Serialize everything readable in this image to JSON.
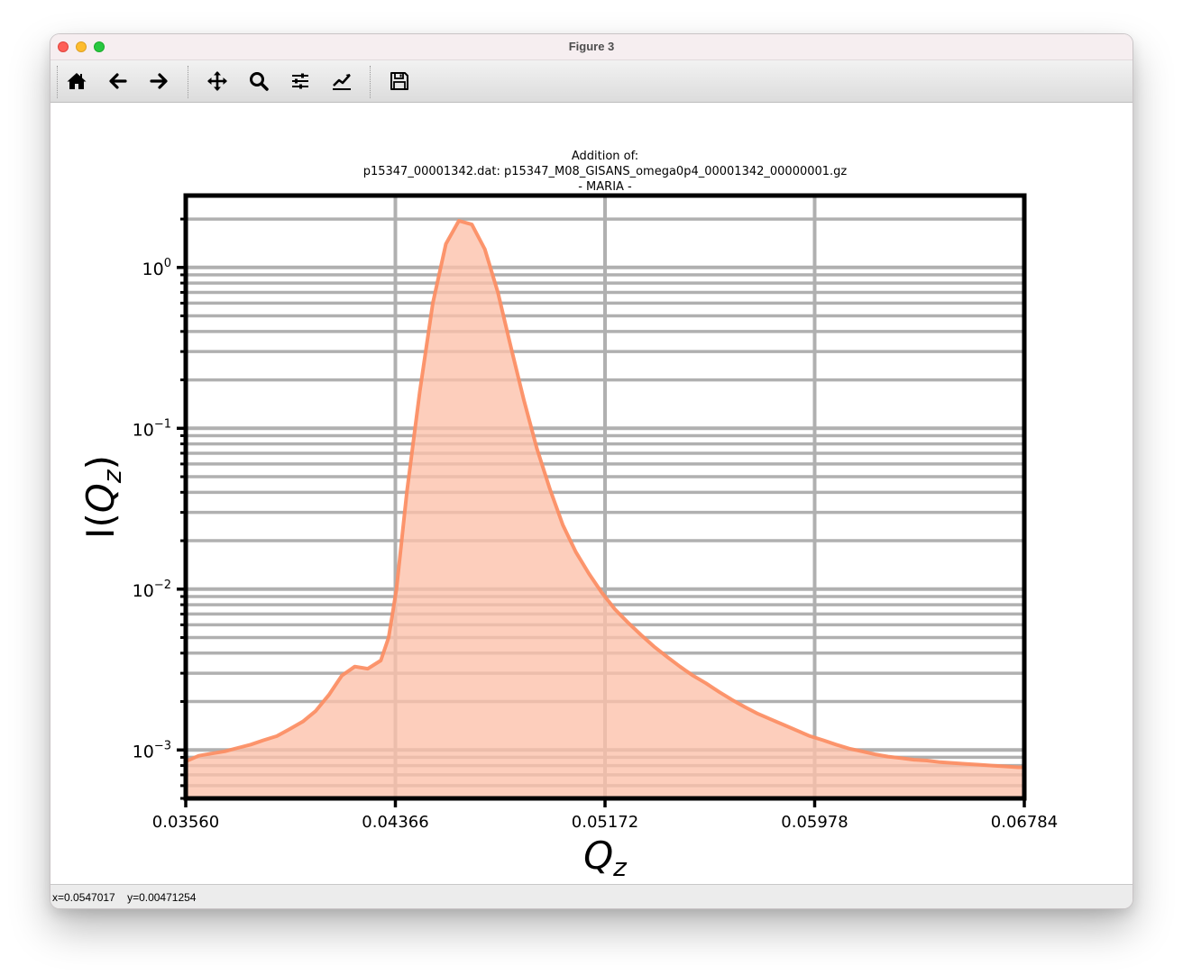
{
  "window": {
    "title": "Figure 3"
  },
  "toolbar": {
    "buttons": [
      {
        "name": "home-button",
        "icon": "home-icon",
        "tooltip": "Reset original view"
      },
      {
        "name": "back-button",
        "icon": "arrow-left-icon",
        "tooltip": "Back"
      },
      {
        "name": "forward-button",
        "icon": "arrow-right-icon",
        "tooltip": "Forward"
      },
      {
        "name": "pan-button",
        "icon": "move-icon",
        "tooltip": "Pan"
      },
      {
        "name": "zoom-button",
        "icon": "magnifier-icon",
        "tooltip": "Zoom"
      },
      {
        "name": "subplots-button",
        "icon": "sliders-icon",
        "tooltip": "Configure subplots"
      },
      {
        "name": "axes-button",
        "icon": "line-chart-icon",
        "tooltip": "Edit axis"
      },
      {
        "name": "save-button",
        "icon": "floppy-disk-icon",
        "tooltip": "Save the figure"
      }
    ]
  },
  "status": {
    "coords": "x=0.0547017    y=0.00471254"
  },
  "colors": {
    "line": "#fc8d62",
    "fill": "#fdc0a9",
    "grid": "#b0b0b0"
  },
  "chart_data": {
    "type": "area",
    "title_lines": [
      "Addition of:",
      "p15347_00001342.dat: p15347_M08_GISANS_omega0p4_00001342_00000001.gz",
      "- MARIA -"
    ],
    "xlabel": "Q_z",
    "ylabel": "I(Q_z)",
    "yscale": "log",
    "xlim": [
      0.0356,
      0.06784
    ],
    "ylim": [
      0.0005,
      2.8
    ],
    "xticks": [
      0.0356,
      0.04366,
      0.05172,
      0.05978,
      0.06784
    ],
    "xtick_labels": [
      "0.03560",
      "0.04366",
      "0.05172",
      "0.05978",
      "0.06784"
    ],
    "yticks": [
      {
        "value": 0.001,
        "base": "10",
        "exp": "−3"
      },
      {
        "value": 0.01,
        "base": "10",
        "exp": "−2"
      },
      {
        "value": 0.1,
        "base": "10",
        "exp": "−1"
      },
      {
        "value": 1,
        "base": "10",
        "exp": "0"
      }
    ],
    "grid": true,
    "series": [
      {
        "x": [
          0.0356,
          0.0361,
          0.0366,
          0.0371,
          0.0376,
          0.0381,
          0.0386,
          0.0391,
          0.0396,
          0.0401,
          0.0406,
          0.0411,
          0.0416,
          0.0421,
          0.0426,
          0.0431,
          0.0434,
          0.0437,
          0.0441,
          0.0446,
          0.0451,
          0.0456,
          0.0461,
          0.0466,
          0.0471,
          0.0476,
          0.0481,
          0.0486,
          0.0491,
          0.0496,
          0.0501,
          0.0506,
          0.0511,
          0.0516,
          0.0521,
          0.0526,
          0.0531,
          0.0536,
          0.0541,
          0.0546,
          0.0551,
          0.0556,
          0.0561,
          0.0566,
          0.0571,
          0.0576,
          0.0581,
          0.0586,
          0.0591,
          0.0596,
          0.0601,
          0.0606,
          0.0611,
          0.0616,
          0.0621,
          0.0626,
          0.0631,
          0.0636,
          0.0641,
          0.0646,
          0.0651,
          0.0656,
          0.0661,
          0.0666,
          0.0671,
          0.0676,
          0.0678
        ],
        "y": [
          0.00085,
          0.00092,
          0.00095,
          0.00098,
          0.00103,
          0.00108,
          0.00115,
          0.00122,
          0.00135,
          0.0015,
          0.00175,
          0.0022,
          0.0029,
          0.0033,
          0.0032,
          0.0036,
          0.005,
          0.01,
          0.04,
          0.17,
          0.6,
          1.4,
          1.95,
          1.85,
          1.3,
          0.7,
          0.32,
          0.15,
          0.075,
          0.042,
          0.025,
          0.017,
          0.0125,
          0.0095,
          0.0075,
          0.0062,
          0.0052,
          0.0044,
          0.0038,
          0.0033,
          0.0029,
          0.0026,
          0.0023,
          0.00205,
          0.00185,
          0.00168,
          0.00155,
          0.00143,
          0.00132,
          0.00122,
          0.00115,
          0.00108,
          0.00102,
          0.00098,
          0.00094,
          0.00091,
          0.00089,
          0.00087,
          0.00086,
          0.00084,
          0.00083,
          0.00082,
          0.00081,
          0.0008,
          0.00079,
          0.00078,
          0.00078
        ]
      }
    ]
  }
}
